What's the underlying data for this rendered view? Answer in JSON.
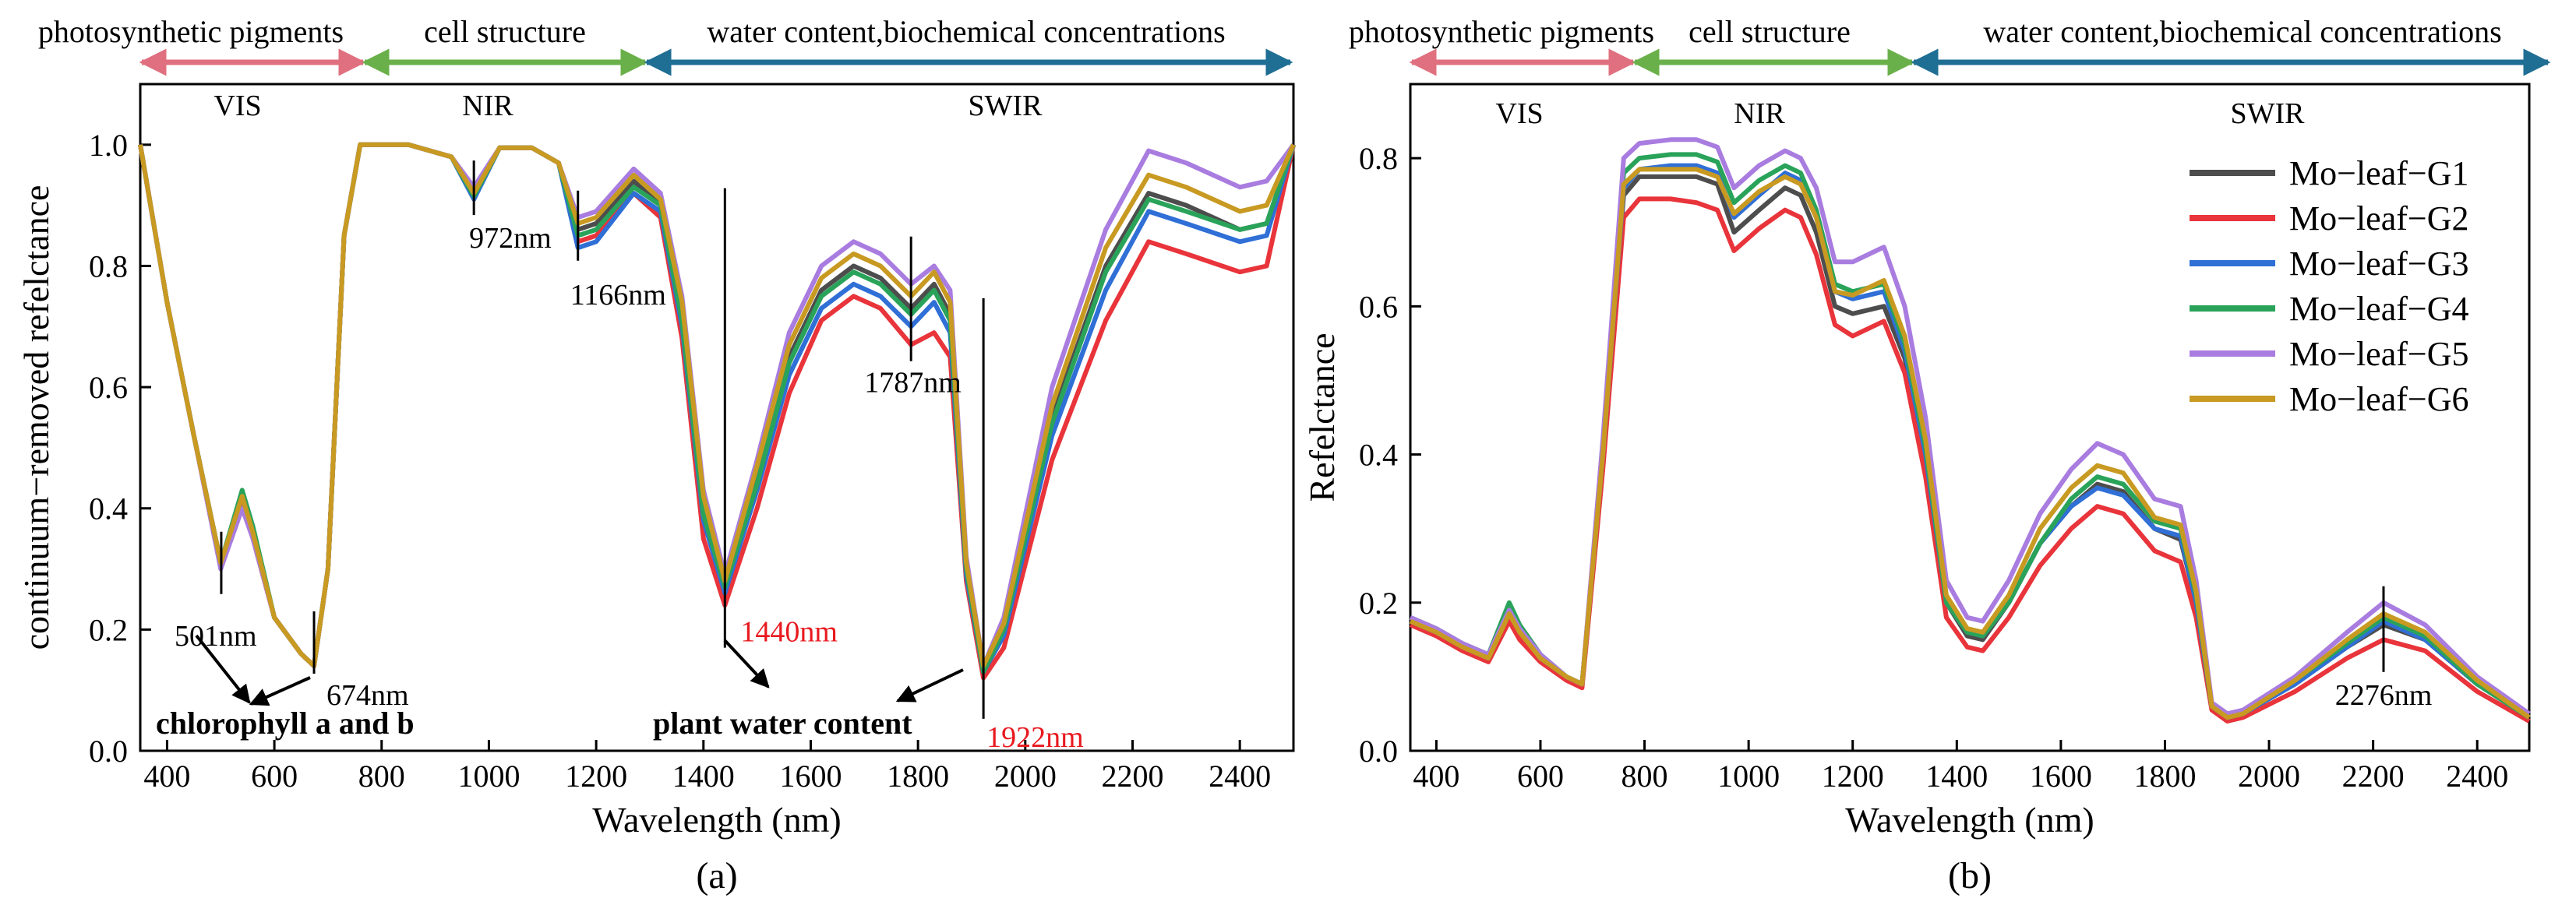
{
  "colors": {
    "pigments_arrow": "#e0707f",
    "structure_arrow": "#6ab04a",
    "water_arrow": "#1f6e94",
    "G1": "#4d4d4d",
    "G2": "#e8343a",
    "G3": "#2f6fd6",
    "G4": "#2aa35a",
    "G5": "#a97ce0",
    "G6": "#c89a22",
    "annotation_red": "#e8191f"
  },
  "band_labels": {
    "pigments": "photosynthetic pigments",
    "structure": "cell structure",
    "water": "water content,biochemical concentrations"
  },
  "chart_data": [
    {
      "type": "line",
      "panel_label": "(a)",
      "xlabel": "Wavelength (nm)",
      "ylabel": "continuum−removed refelctance",
      "xlim": [
        350,
        2500
      ],
      "ylim": [
        0,
        1.1
      ],
      "xticks": [
        400,
        600,
        800,
        1000,
        1200,
        1400,
        1600,
        1800,
        2000,
        2200,
        2400
      ],
      "yticks": [
        0.0,
        0.2,
        0.4,
        0.6,
        0.8,
        1.0
      ],
      "ytick_labels": [
        "0.0",
        "0.2",
        "0.4",
        "0.6",
        "0.8",
        "1.0"
      ],
      "regions": [
        "VIS",
        "NIR",
        "SWIR"
      ],
      "x": [
        350,
        400,
        450,
        500,
        540,
        560,
        600,
        650,
        674,
        700,
        730,
        760,
        850,
        930,
        972,
        1020,
        1080,
        1130,
        1166,
        1200,
        1270,
        1320,
        1360,
        1400,
        1440,
        1500,
        1560,
        1620,
        1680,
        1730,
        1787,
        1830,
        1860,
        1890,
        1922,
        1960,
        2050,
        2150,
        2230,
        2300,
        2400,
        2450,
        2500
      ],
      "series": [
        {
          "name": "Mo−leaf−G1",
          "color_key": "G1",
          "values": [
            1.0,
            0.74,
            0.52,
            0.31,
            0.42,
            0.36,
            0.22,
            0.16,
            0.14,
            0.3,
            0.85,
            1.0,
            1.0,
            0.98,
            0.92,
            0.995,
            0.995,
            0.97,
            0.86,
            0.87,
            0.94,
            0.9,
            0.72,
            0.4,
            0.27,
            0.45,
            0.65,
            0.76,
            0.8,
            0.78,
            0.73,
            0.77,
            0.72,
            0.3,
            0.13,
            0.2,
            0.55,
            0.8,
            0.92,
            0.9,
            0.86,
            0.87,
            1.0
          ]
        },
        {
          "name": "Mo−leaf−G2",
          "color_key": "G2",
          "values": [
            1.0,
            0.74,
            0.52,
            0.31,
            0.41,
            0.35,
            0.22,
            0.16,
            0.14,
            0.3,
            0.85,
            1.0,
            1.0,
            0.98,
            0.925,
            0.995,
            0.995,
            0.97,
            0.84,
            0.85,
            0.92,
            0.88,
            0.68,
            0.35,
            0.24,
            0.4,
            0.59,
            0.71,
            0.75,
            0.73,
            0.67,
            0.69,
            0.65,
            0.28,
            0.12,
            0.17,
            0.48,
            0.71,
            0.84,
            0.82,
            0.79,
            0.8,
            1.0
          ]
        },
        {
          "name": "Mo−leaf−G3",
          "color_key": "G3",
          "values": [
            1.0,
            0.74,
            0.52,
            0.31,
            0.42,
            0.36,
            0.22,
            0.16,
            0.14,
            0.3,
            0.85,
            1.0,
            1.0,
            0.98,
            0.91,
            0.995,
            0.995,
            0.97,
            0.83,
            0.84,
            0.92,
            0.89,
            0.7,
            0.38,
            0.26,
            0.43,
            0.62,
            0.73,
            0.77,
            0.75,
            0.7,
            0.74,
            0.69,
            0.29,
            0.13,
            0.19,
            0.52,
            0.76,
            0.89,
            0.87,
            0.84,
            0.85,
            1.0
          ]
        },
        {
          "name": "Mo−leaf−G4",
          "color_key": "G4",
          "values": [
            1.0,
            0.74,
            0.52,
            0.31,
            0.43,
            0.37,
            0.22,
            0.16,
            0.14,
            0.3,
            0.85,
            1.0,
            1.0,
            0.98,
            0.915,
            0.995,
            0.995,
            0.97,
            0.85,
            0.86,
            0.93,
            0.9,
            0.71,
            0.39,
            0.27,
            0.44,
            0.64,
            0.75,
            0.79,
            0.77,
            0.72,
            0.76,
            0.71,
            0.3,
            0.13,
            0.2,
            0.54,
            0.79,
            0.91,
            0.89,
            0.86,
            0.87,
            1.0
          ]
        },
        {
          "name": "Mo−leaf−G5",
          "color_key": "G5",
          "values": [
            1.0,
            0.74,
            0.52,
            0.3,
            0.4,
            0.35,
            0.22,
            0.16,
            0.14,
            0.3,
            0.85,
            1.0,
            1.0,
            0.98,
            0.93,
            0.995,
            0.995,
            0.97,
            0.88,
            0.89,
            0.96,
            0.92,
            0.75,
            0.43,
            0.29,
            0.48,
            0.69,
            0.8,
            0.84,
            0.82,
            0.77,
            0.8,
            0.76,
            0.32,
            0.14,
            0.22,
            0.6,
            0.86,
            0.99,
            0.97,
            0.93,
            0.94,
            1.0
          ]
        },
        {
          "name": "Mo−leaf−G6",
          "color_key": "G6",
          "values": [
            1.0,
            0.74,
            0.52,
            0.31,
            0.42,
            0.36,
            0.22,
            0.16,
            0.14,
            0.3,
            0.85,
            1.0,
            1.0,
            0.98,
            0.92,
            0.995,
            0.995,
            0.97,
            0.87,
            0.88,
            0.95,
            0.91,
            0.74,
            0.42,
            0.28,
            0.47,
            0.67,
            0.78,
            0.82,
            0.8,
            0.75,
            0.79,
            0.74,
            0.31,
            0.14,
            0.21,
            0.57,
            0.83,
            0.95,
            0.93,
            0.89,
            0.9,
            1.0
          ]
        }
      ],
      "annotations": [
        {
          "text": "972nm",
          "x": 972,
          "y": 0.92,
          "red": false
        },
        {
          "text": "1166nm",
          "x": 1166,
          "y": 0.86,
          "red": false
        },
        {
          "text": "1787nm",
          "x": 1787,
          "y": 0.72,
          "red": false
        },
        {
          "text": "501nm",
          "x": 501,
          "y": 0.31,
          "red": false
        },
        {
          "text": "674nm",
          "x": 674,
          "y": 0.14,
          "red": false
        },
        {
          "text": "1440nm",
          "x": 1440,
          "y": 0.26,
          "red": true
        },
        {
          "text": "1922nm",
          "x": 1922,
          "y": 0.13,
          "red": true
        }
      ],
      "group_labels": {
        "chlorophyll": "chlorophyll a and b",
        "water": "plant water content"
      }
    },
    {
      "type": "line",
      "panel_label": "(b)",
      "xlabel": "Wavelength (nm)",
      "ylabel": "Refelctance",
      "xlim": [
        350,
        2500
      ],
      "ylim": [
        0,
        0.9
      ],
      "xticks": [
        400,
        600,
        800,
        1000,
        1200,
        1400,
        1600,
        1800,
        2000,
        2200,
        2400
      ],
      "yticks": [
        0.0,
        0.2,
        0.4,
        0.6,
        0.8
      ],
      "ytick_labels": [
        "0.0",
        "0.2",
        "0.4",
        "0.6",
        "0.8"
      ],
      "regions": [
        "VIS",
        "NIR",
        "SWIR"
      ],
      "x": [
        350,
        400,
        450,
        500,
        540,
        560,
        600,
        650,
        680,
        720,
        760,
        790,
        850,
        900,
        940,
        972,
        1020,
        1070,
        1100,
        1130,
        1166,
        1200,
        1260,
        1300,
        1340,
        1380,
        1420,
        1450,
        1500,
        1560,
        1620,
        1670,
        1720,
        1780,
        1830,
        1860,
        1890,
        1920,
        1950,
        2050,
        2150,
        2220,
        2300,
        2400,
        2500
      ],
      "series": [
        {
          "name": "Mo−leaf−G1",
          "color_key": "G1",
          "values": [
            0.175,
            0.16,
            0.14,
            0.125,
            0.185,
            0.16,
            0.125,
            0.1,
            0.09,
            0.4,
            0.75,
            0.775,
            0.775,
            0.775,
            0.765,
            0.7,
            0.73,
            0.76,
            0.75,
            0.7,
            0.6,
            0.59,
            0.6,
            0.53,
            0.4,
            0.2,
            0.155,
            0.15,
            0.2,
            0.28,
            0.33,
            0.36,
            0.35,
            0.3,
            0.285,
            0.2,
            0.06,
            0.045,
            0.05,
            0.09,
            0.14,
            0.17,
            0.15,
            0.09,
            0.045
          ]
        },
        {
          "name": "Mo−leaf−G2",
          "color_key": "G2",
          "values": [
            0.17,
            0.155,
            0.135,
            0.12,
            0.175,
            0.15,
            0.12,
            0.095,
            0.085,
            0.38,
            0.72,
            0.745,
            0.745,
            0.74,
            0.73,
            0.675,
            0.705,
            0.73,
            0.72,
            0.67,
            0.575,
            0.56,
            0.58,
            0.51,
            0.37,
            0.18,
            0.14,
            0.135,
            0.18,
            0.25,
            0.3,
            0.33,
            0.32,
            0.27,
            0.255,
            0.18,
            0.055,
            0.04,
            0.045,
            0.08,
            0.125,
            0.15,
            0.135,
            0.08,
            0.04
          ]
        },
        {
          "name": "Mo−leaf−G3",
          "color_key": "G3",
          "values": [
            0.175,
            0.16,
            0.14,
            0.125,
            0.19,
            0.165,
            0.125,
            0.1,
            0.09,
            0.4,
            0.76,
            0.785,
            0.79,
            0.79,
            0.78,
            0.72,
            0.75,
            0.78,
            0.77,
            0.72,
            0.62,
            0.61,
            0.62,
            0.54,
            0.4,
            0.2,
            0.16,
            0.155,
            0.2,
            0.28,
            0.33,
            0.355,
            0.345,
            0.3,
            0.29,
            0.2,
            0.06,
            0.045,
            0.05,
            0.09,
            0.14,
            0.175,
            0.15,
            0.09,
            0.045
          ]
        },
        {
          "name": "Mo−leaf−G4",
          "color_key": "G4",
          "values": [
            0.18,
            0.165,
            0.145,
            0.13,
            0.2,
            0.17,
            0.13,
            0.1,
            0.09,
            0.41,
            0.78,
            0.8,
            0.805,
            0.805,
            0.795,
            0.74,
            0.77,
            0.79,
            0.78,
            0.73,
            0.63,
            0.62,
            0.63,
            0.55,
            0.41,
            0.2,
            0.16,
            0.155,
            0.2,
            0.28,
            0.34,
            0.37,
            0.36,
            0.31,
            0.3,
            0.21,
            0.06,
            0.045,
            0.05,
            0.095,
            0.145,
            0.18,
            0.155,
            0.09,
            0.045
          ]
        },
        {
          "name": "Mo−leaf−G5",
          "color_key": "G5",
          "values": [
            0.18,
            0.165,
            0.145,
            0.13,
            0.19,
            0.165,
            0.13,
            0.1,
            0.09,
            0.42,
            0.8,
            0.82,
            0.825,
            0.825,
            0.815,
            0.76,
            0.79,
            0.81,
            0.8,
            0.76,
            0.66,
            0.66,
            0.68,
            0.6,
            0.45,
            0.23,
            0.18,
            0.175,
            0.23,
            0.32,
            0.38,
            0.415,
            0.4,
            0.34,
            0.33,
            0.23,
            0.065,
            0.05,
            0.055,
            0.1,
            0.16,
            0.2,
            0.17,
            0.1,
            0.05
          ]
        },
        {
          "name": "Mo−leaf−G6",
          "color_key": "G6",
          "values": [
            0.175,
            0.16,
            0.14,
            0.125,
            0.185,
            0.16,
            0.125,
            0.1,
            0.09,
            0.4,
            0.765,
            0.785,
            0.785,
            0.785,
            0.775,
            0.725,
            0.755,
            0.775,
            0.765,
            0.72,
            0.62,
            0.615,
            0.635,
            0.56,
            0.42,
            0.21,
            0.165,
            0.16,
            0.21,
            0.3,
            0.355,
            0.385,
            0.375,
            0.315,
            0.305,
            0.215,
            0.06,
            0.045,
            0.05,
            0.095,
            0.15,
            0.185,
            0.16,
            0.095,
            0.045
          ]
        }
      ],
      "annotations": [
        {
          "text": "2276nm",
          "x": 2220,
          "y": 0.18,
          "red": false
        }
      ],
      "legend_position": "top-right"
    }
  ]
}
